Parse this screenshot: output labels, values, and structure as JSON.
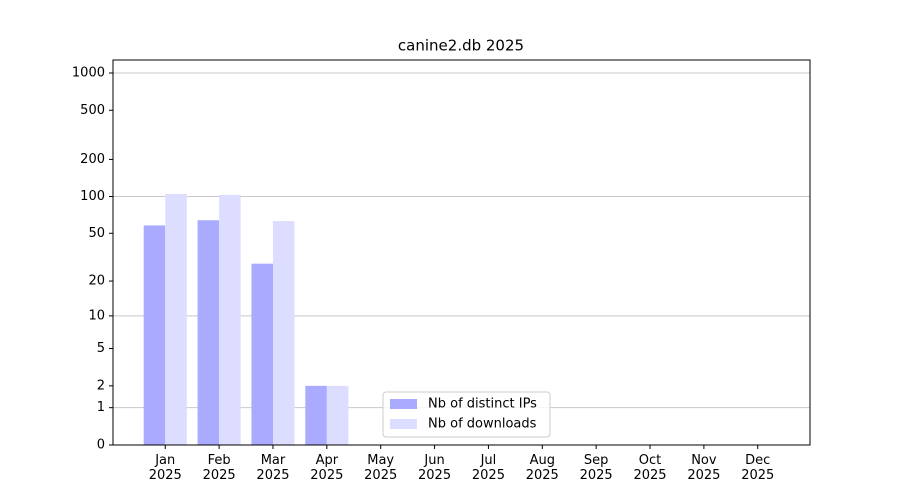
{
  "chart_data": {
    "type": "bar",
    "title": "canine2.db 2025",
    "categories": [
      "Jan\n2025",
      "Feb\n2025",
      "Mar\n2025",
      "Apr\n2025",
      "May\n2025",
      "Jun\n2025",
      "Jul\n2025",
      "Aug\n2025",
      "Sep\n2025",
      "Oct\n2025",
      "Nov\n2025",
      "Dec\n2025"
    ],
    "series": [
      {
        "name": "Nb of distinct IPs",
        "color": "#aaaaff",
        "values": [
          58,
          64,
          28,
          2,
          0,
          0,
          0,
          0,
          0,
          0,
          0,
          0
        ]
      },
      {
        "name": "Nb of downloads",
        "color": "#ddddff",
        "values": [
          105,
          103,
          63,
          2,
          0,
          0,
          0,
          0,
          0,
          0,
          0,
          0
        ]
      }
    ],
    "yscale": "log1p",
    "ylim": [
      0,
      1273
    ],
    "yticks": [
      0,
      1,
      2,
      5,
      10,
      20,
      50,
      100,
      200,
      500,
      1000
    ],
    "grid": true,
    "legend": "lower center"
  }
}
